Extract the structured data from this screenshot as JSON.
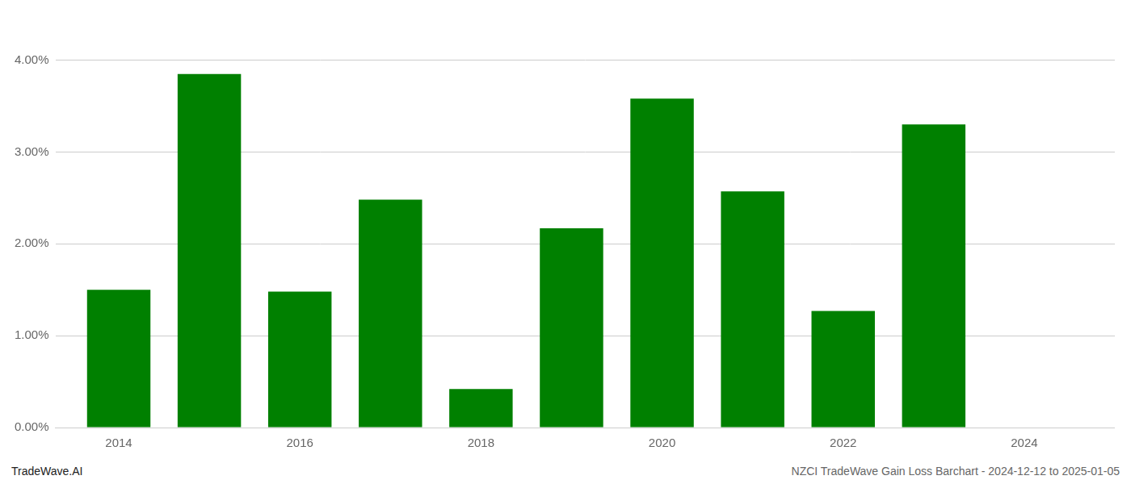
{
  "chart_data": {
    "type": "bar",
    "x": [
      2014,
      2015,
      2016,
      2017,
      2018,
      2019,
      2020,
      2021,
      2022,
      2023
    ],
    "values": [
      0.015,
      0.0385,
      0.0148,
      0.0248,
      0.0042,
      0.0217,
      0.0358,
      0.0257,
      0.0127,
      0.033
    ],
    "color": "#008000",
    "xlim": [
      2013.3,
      2025.0
    ],
    "xticks": [
      2014,
      2016,
      2018,
      2020,
      2022,
      2024
    ],
    "ylim": [
      0,
      0.044
    ],
    "yticks": [
      {
        "value": 0.0,
        "label": "0.00%"
      },
      {
        "value": 0.01,
        "label": "1.00%"
      },
      {
        "value": 0.02,
        "label": "2.00%"
      },
      {
        "value": 0.03,
        "label": "3.00%"
      },
      {
        "value": 0.04,
        "label": "4.00%"
      }
    ],
    "grid": true,
    "annotations": [
      "TradeWave.AI",
      "NZCI TradeWave Gain Loss Barchart - 2024-12-12 to 2025-01-05"
    ]
  }
}
